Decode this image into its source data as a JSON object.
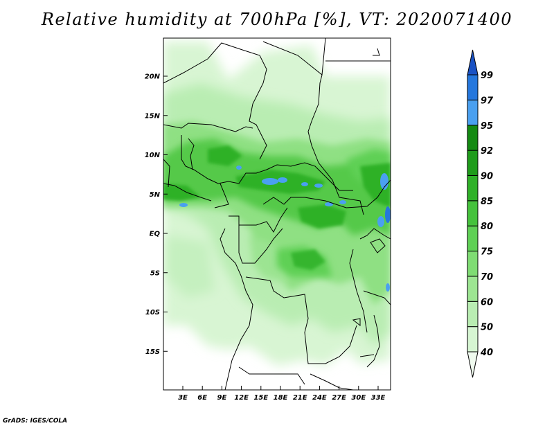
{
  "title": "Relative humidity at 700hPa [%], VT: 2020071400",
  "credit": "GrADS: IGES/COLA",
  "map": {
    "lat_ticks": [
      {
        "value": 20,
        "label": "20N"
      },
      {
        "value": 15,
        "label": "15N"
      },
      {
        "value": 10,
        "label": "10N"
      },
      {
        "value": 5,
        "label": "5N"
      },
      {
        "value": 0,
        "label": "EQ"
      },
      {
        "value": -5,
        "label": "5S"
      },
      {
        "value": -10,
        "label": "10S"
      },
      {
        "value": -15,
        "label": "15S"
      }
    ],
    "lon_ticks": [
      {
        "value": 3,
        "label": "3E"
      },
      {
        "value": 6,
        "label": "6E"
      },
      {
        "value": 9,
        "label": "9E"
      },
      {
        "value": 12,
        "label": "12E"
      },
      {
        "value": 15,
        "label": "15E"
      },
      {
        "value": 18,
        "label": "18E"
      },
      {
        "value": 21,
        "label": "21E"
      },
      {
        "value": 24,
        "label": "24E"
      },
      {
        "value": 27,
        "label": "27E"
      },
      {
        "value": 30,
        "label": "30E"
      },
      {
        "value": 33,
        "label": "33E"
      }
    ]
  },
  "colorbar": {
    "levels": [
      "40",
      "50",
      "60",
      "70",
      "75",
      "80",
      "85",
      "90",
      "92",
      "95",
      "97",
      "99"
    ],
    "colors": [
      "#f0fbef",
      "#d6f5d2",
      "#b9edb2",
      "#9de592",
      "#7fdc73",
      "#5fd055",
      "#45c23c",
      "#2fb128",
      "#1f9c1b",
      "#148a12",
      "#4aa0f0",
      "#2577dd",
      "#1a52c4"
    ]
  },
  "colors": {
    "frame": "#000000",
    "background": "#ffffff"
  }
}
